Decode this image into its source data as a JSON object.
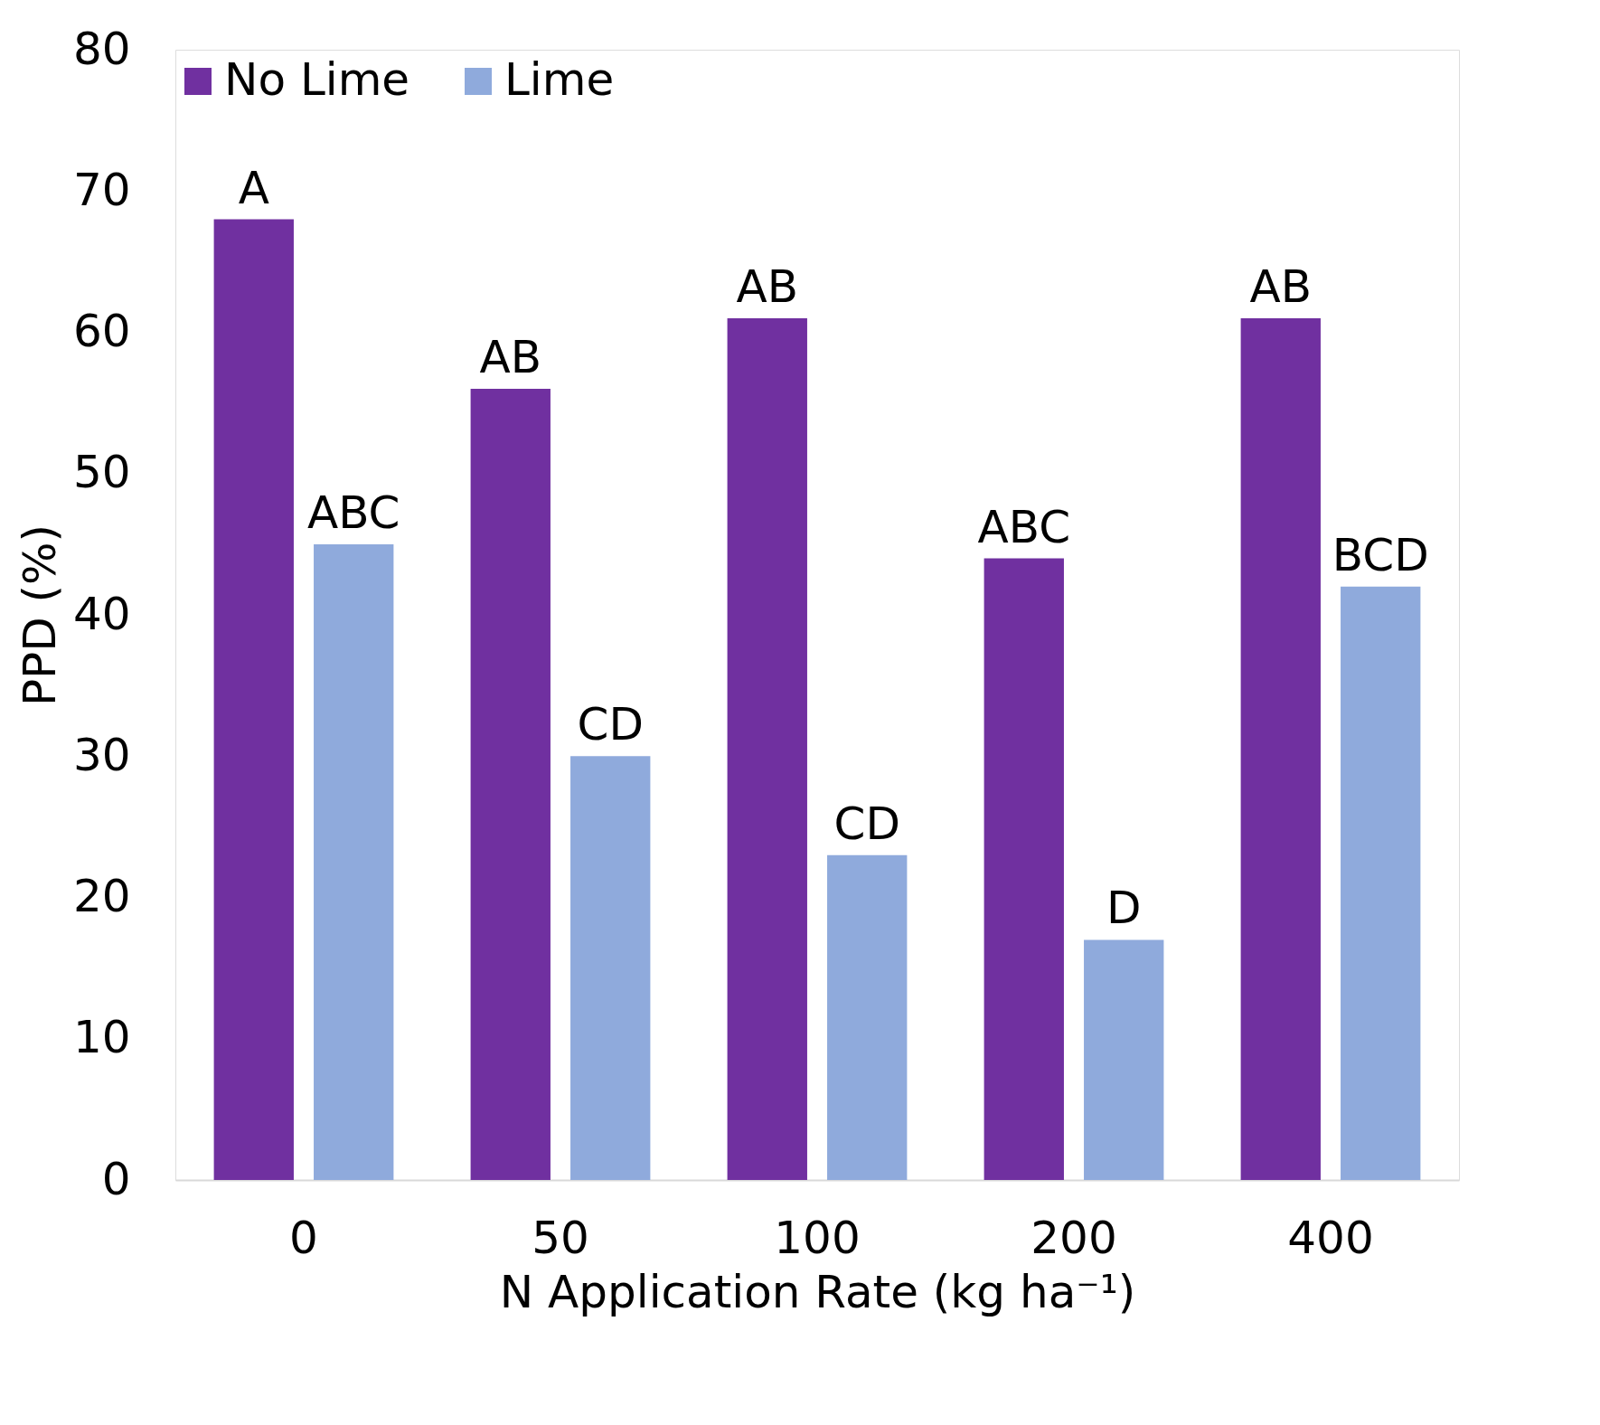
{
  "chart_data": {
    "type": "bar",
    "xlabel": "N Application Rate (kg ha⁻¹)",
    "ylabel": "PPD (%)",
    "categories": [
      "0",
      "50",
      "100",
      "200",
      "400"
    ],
    "series": [
      {
        "name": "No Lime",
        "color": "#7030a0",
        "values": [
          68,
          56,
          61,
          44,
          61
        ],
        "value_labels": [
          "A",
          "AB",
          "AB",
          "ABC",
          "AB"
        ]
      },
      {
        "name": "Lime",
        "color": "#8faadc",
        "values": [
          45,
          30,
          23,
          17,
          42
        ],
        "value_labels": [
          "ABC",
          "CD",
          "CD",
          "D",
          "BCD"
        ]
      }
    ],
    "ylim": [
      0,
      80
    ],
    "yticks": [
      0,
      10,
      20,
      30,
      40,
      50,
      60,
      70,
      80
    ],
    "grid": false,
    "legend": "top"
  }
}
